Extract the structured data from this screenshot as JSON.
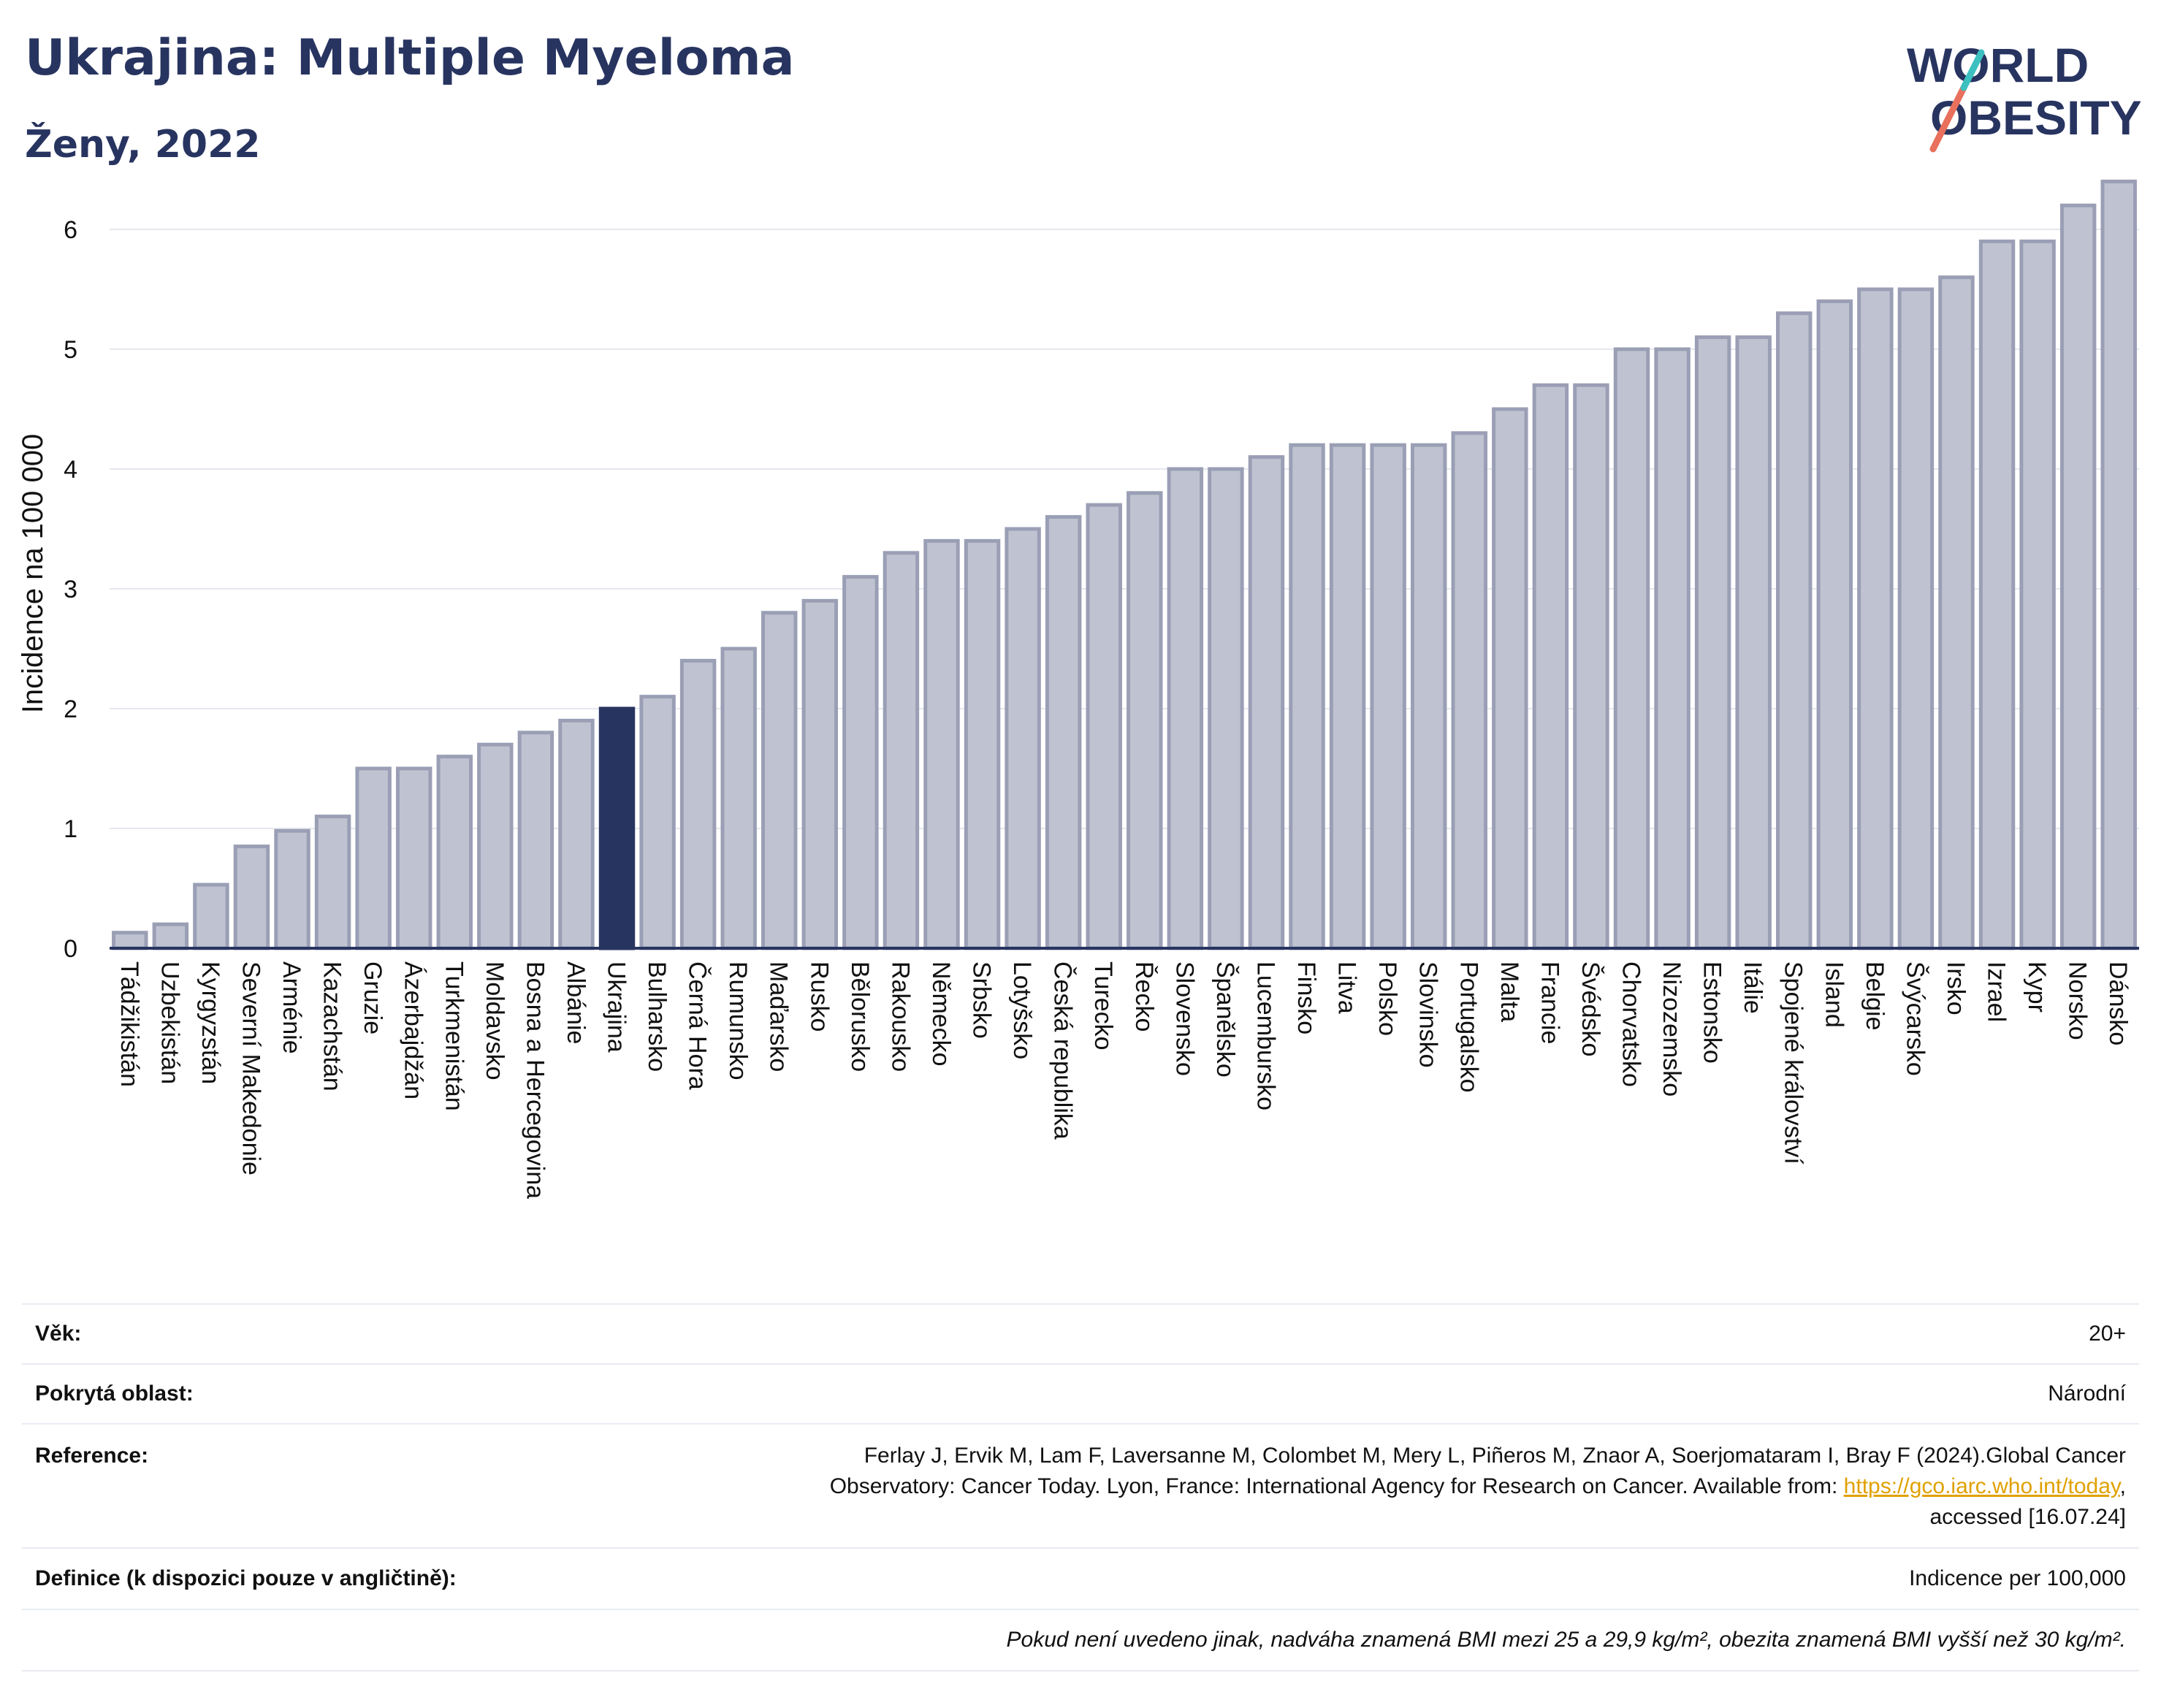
{
  "header": {
    "title": "Ukrajina: Multiple Myeloma",
    "subtitle": "Ženy, 2022",
    "logo_line1": "WORLD",
    "logo_line2": "OBESITY"
  },
  "colors": {
    "highlight": "#283460",
    "bar": "#bfc3d1",
    "bar_stroke": "#9a9fb5",
    "logo_slash": "#e8705c",
    "logo_slash_top": "#3cc0c0"
  },
  "chart_data": {
    "type": "bar",
    "ylabel": "Incidence na 100 000",
    "ylim": [
      0,
      6.5
    ],
    "yticks": [
      0,
      1,
      2,
      3,
      4,
      5,
      6
    ],
    "grid": true,
    "highlight": "Ukrajina",
    "categories": [
      "Tádžikistán",
      "Uzbekistán",
      "Kyrgyzstán",
      "Severní Makedonie",
      "Arménie",
      "Kazachstán",
      "Gruzie",
      "Ázerbajdžán",
      "Turkmenistán",
      "Moldavsko",
      "Bosna a Hercegovina",
      "Albánie",
      "Ukrajina",
      "Bulharsko",
      "Černá Hora",
      "Rumunsko",
      "Maďarsko",
      "Rusko",
      "Bělorusko",
      "Rakousko",
      "Německo",
      "Srbsko",
      "Lotyšsko",
      "Česká republika",
      "Turecko",
      "Řecko",
      "Slovensko",
      "Španělsko",
      "Lucembursko",
      "Finsko",
      "Litva",
      "Polsko",
      "Slovinsko",
      "Portugalsko",
      "Malta",
      "Francie",
      "Švédsko",
      "Chorvatsko",
      "Nizozemsko",
      "Estonsko",
      "Itálie",
      "Spojené království",
      "Island",
      "Belgie",
      "Švýcarsko",
      "Irsko",
      "Izrael",
      "Kypr",
      "Norsko",
      "Dánsko"
    ],
    "values": [
      0.13,
      0.2,
      0.53,
      0.85,
      0.98,
      1.1,
      1.5,
      1.5,
      1.6,
      1.7,
      1.8,
      1.9,
      2.0,
      2.1,
      2.4,
      2.5,
      2.8,
      2.9,
      3.1,
      3.3,
      3.4,
      3.4,
      3.5,
      3.6,
      3.7,
      3.8,
      4.0,
      4.0,
      4.1,
      4.2,
      4.2,
      4.2,
      4.2,
      4.3,
      4.5,
      4.7,
      4.7,
      5.0,
      5.0,
      5.1,
      5.1,
      5.3,
      5.4,
      5.5,
      5.5,
      5.6,
      5.9,
      5.9,
      6.2,
      6.4
    ]
  },
  "meta": {
    "age_label": "Věk:",
    "age_value": "20+",
    "area_label": "Pokrytá oblast:",
    "area_value": "Národní",
    "ref_label": "Reference:",
    "ref_text_1": "Ferlay J, Ervik M, Lam F, Laversanne M, Colombet M, Mery L, Piñeros M, Znaor A, Soerjomataram I, Bray F (2024).Global Cancer",
    "ref_text_2": "Observatory: Cancer Today. Lyon, France: International Agency for Research on Cancer. Available from: ",
    "ref_link": "https://gco.iarc.who.int/today",
    "ref_text_3": ",",
    "ref_text_4": "accessed [16.07.24]",
    "def_label": "Definice (k dispozici pouze v angličtině):",
    "def_value": "Indicence per 100,000",
    "note": "Pokud není uvedeno jinak, nadváha znamená BMI mezi 25 a 29,9 kg/m², obezita znamená BMI vyšší než 30 kg/m²."
  }
}
